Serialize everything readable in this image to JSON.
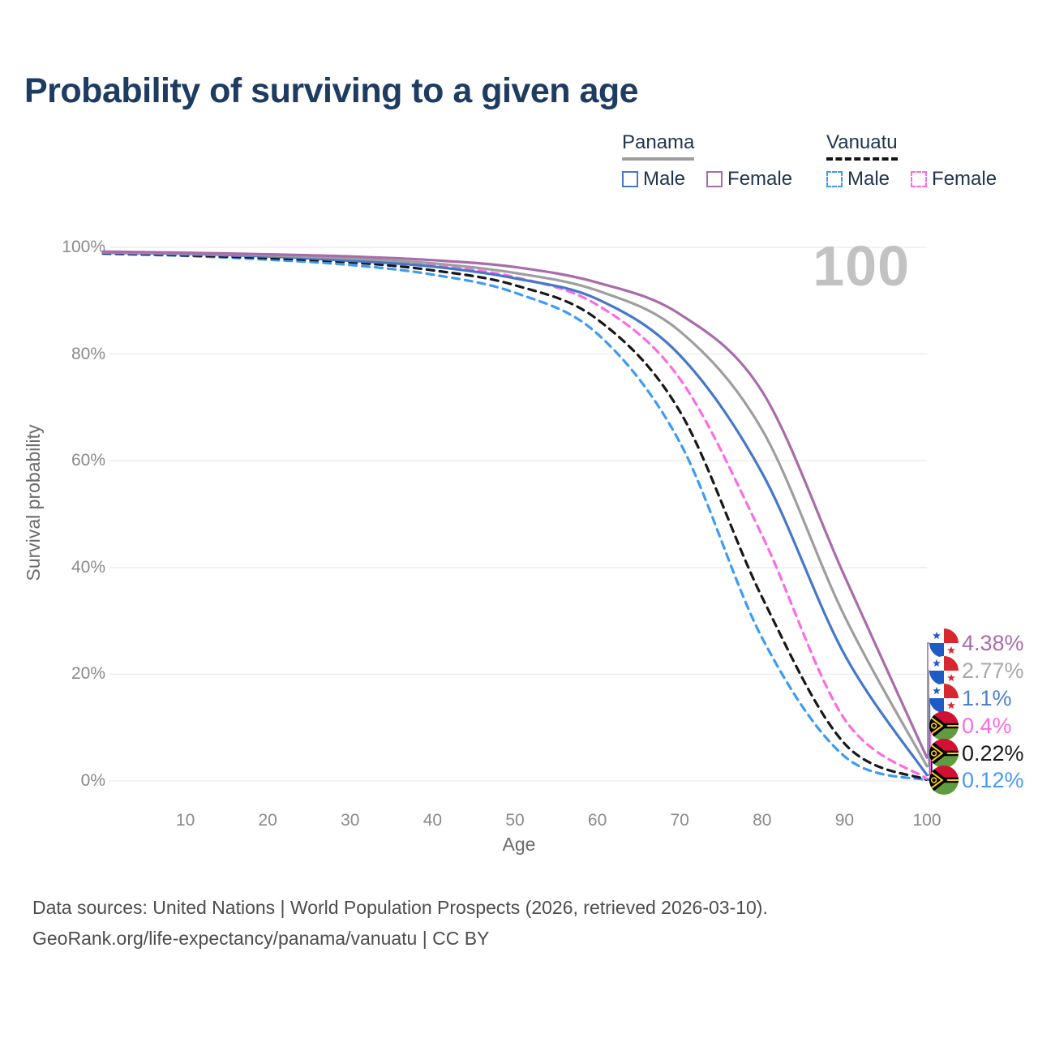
{
  "header": {
    "title": "Probability of surviving to a given age"
  },
  "watermark": "100",
  "legend": {
    "groups": [
      {
        "name": "Panama",
        "style": "solid",
        "underline_color": "#9e9e9e",
        "items": [
          {
            "label": "Male",
            "color": "#4678c8"
          },
          {
            "label": "Female",
            "color": "#a96cab"
          }
        ]
      },
      {
        "name": "Vanuatu",
        "style": "dashed",
        "underline_color": "#141414",
        "items": [
          {
            "label": "Male",
            "color": "#3d9bf5"
          },
          {
            "label": "Female",
            "color": "#fb6ce4"
          }
        ]
      }
    ]
  },
  "axes": {
    "y_label": "Survival probability",
    "x_label": "Age",
    "y_ticks": [
      "100%",
      "80%",
      "60%",
      "40%",
      "20%",
      "0%"
    ],
    "x_ticks": [
      "10",
      "20",
      "30",
      "40",
      "50",
      "60",
      "70",
      "80",
      "90",
      "100"
    ]
  },
  "chart_data": {
    "type": "line",
    "title": "Probability of surviving to a given age",
    "xlabel": "Age",
    "ylabel": "Survival probability",
    "xlim": [
      0,
      100
    ],
    "ylim": [
      0,
      100
    ],
    "grid": "horizontal",
    "legend_position": "top-right",
    "x": [
      0,
      10,
      20,
      30,
      40,
      50,
      60,
      70,
      80,
      90,
      100
    ],
    "series": [
      {
        "name": "Panama Female",
        "country": "Panama",
        "sex": "Female",
        "line": "solid",
        "color": "#a96cab",
        "label_color": "#a96cab",
        "flag": "panama",
        "end_label": "4.38%",
        "values": [
          99.2,
          99.0,
          98.7,
          98.3,
          97.6,
          96.3,
          93.4,
          87.5,
          73.0,
          38.4,
          4.38
        ]
      },
      {
        "name": "Panama",
        "country": "Panama",
        "sex": "Both",
        "line": "solid",
        "color": "#9e9e9e",
        "label_color": "#a8a8a8",
        "flag": "panama",
        "end_label": "2.77%",
        "values": [
          99.1,
          98.9,
          98.5,
          97.9,
          97.0,
          95.2,
          91.9,
          84.3,
          65.8,
          30.9,
          2.77
        ]
      },
      {
        "name": "Panama Male",
        "country": "Panama",
        "sex": "Male",
        "line": "solid",
        "color": "#4678c8",
        "label_color": "#4e80cf",
        "flag": "panama",
        "end_label": "1.1%",
        "values": [
          99.0,
          98.8,
          98.3,
          97.5,
          96.4,
          94.2,
          90.3,
          79.8,
          57.7,
          23.7,
          1.1
        ]
      },
      {
        "name": "Vanuatu Female",
        "country": "Vanuatu",
        "sex": "Female",
        "line": "dashed",
        "color": "#fb6ce4",
        "label_color": "#fb6ce4",
        "flag": "vanuatu",
        "end_label": "0.4%",
        "values": [
          99.0,
          98.7,
          98.3,
          97.8,
          96.6,
          94.4,
          89.2,
          75.4,
          46.0,
          11.6,
          0.4
        ]
      },
      {
        "name": "Vanuatu",
        "country": "Vanuatu",
        "sex": "Both",
        "line": "dashed",
        "color": "#171717",
        "label_color": "#1a1a1a",
        "flag": "vanuatu",
        "end_label": "0.22%",
        "values": [
          98.9,
          98.5,
          98.0,
          97.2,
          95.7,
          92.9,
          86.5,
          69.3,
          34.4,
          7.0,
          0.22
        ]
      },
      {
        "name": "Vanuatu Male",
        "country": "Vanuatu",
        "sex": "Male",
        "line": "dashed",
        "color": "#3d9bf5",
        "label_color": "#4a9af5",
        "flag": "vanuatu",
        "end_label": "0.12%",
        "values": [
          98.8,
          98.4,
          97.7,
          96.7,
          94.9,
          91.5,
          83.8,
          63.5,
          26.8,
          4.6,
          0.12
        ]
      }
    ]
  },
  "footer": {
    "line1": "Data sources: United Nations | World Population Prospects (2026, retrieved 2026-03-10).",
    "line2": "GeoRank.org/life-expectancy/panama/vanuatu | CC BY"
  }
}
